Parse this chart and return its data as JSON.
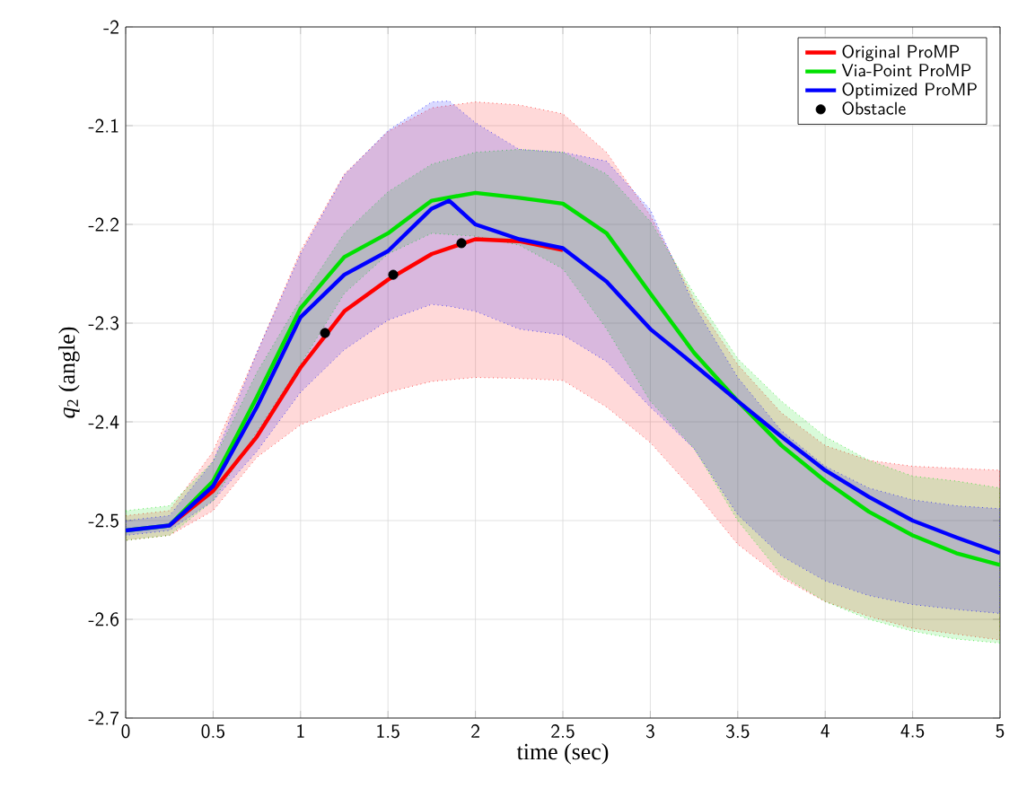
{
  "chart_data": {
    "type": "line",
    "xlabel": "time (sec)",
    "ylabel": "*q*$_{2}$ (angle)",
    "x": [
      0,
      0.25,
      0.5,
      0.75,
      1,
      1.25,
      1.5,
      1.75,
      2,
      2.25,
      2.5,
      2.75,
      3,
      3.25,
      3.5,
      3.75,
      4,
      4.25,
      4.5,
      4.75,
      5
    ],
    "xlim": [
      0,
      5
    ],
    "ylim": [
      -2.7,
      -2
    ],
    "xticks": [
      0,
      0.5,
      1,
      1.5,
      2,
      2.5,
      3,
      3.5,
      4,
      4.5,
      5
    ],
    "yticks": [
      -2.7,
      -2.6,
      -2.5,
      -2.4,
      -2.3,
      -2.2,
      -2.1,
      -2
    ],
    "grid": true,
    "legend": "top right",
    "series": [
      {
        "name": "Original ProMP",
        "color": "#ff0000",
        "values": [
          null,
          -2.505,
          -2.47,
          -2.415,
          -2.345,
          -2.288,
          -2.256,
          -2.23,
          -2.215,
          -2.217,
          -2.226,
          null,
          null,
          null,
          null,
          null,
          null,
          null,
          null,
          null,
          null
        ],
        "upper": [
          -2.495,
          -2.49,
          -2.43,
          -2.33,
          -2.227,
          -2.149,
          -2.106,
          -2.082,
          -2.076,
          -2.079,
          -2.088,
          -2.127,
          -2.191,
          -2.276,
          -2.342,
          -2.391,
          -2.424,
          -2.439,
          -2.445,
          -2.447,
          -2.449
        ],
        "lower": [
          -2.52,
          -2.515,
          -2.49,
          -2.436,
          -2.403,
          -2.385,
          -2.37,
          -2.359,
          -2.355,
          -2.356,
          -2.358,
          -2.385,
          -2.421,
          -2.47,
          -2.524,
          -2.558,
          -2.582,
          -2.597,
          -2.609,
          -2.615,
          -2.621
        ]
      },
      {
        "name": "Via-Point ProMP",
        "color": "#00e000",
        "values": [
          -2.51,
          -2.505,
          -2.46,
          -2.375,
          -2.285,
          -2.233,
          -2.209,
          -2.176,
          -2.168,
          -2.173,
          -2.179,
          -2.209,
          -2.27,
          -2.33,
          -2.379,
          -2.424,
          -2.46,
          -2.491,
          -2.515,
          -2.533,
          -2.545
        ],
        "upper": [
          -2.49,
          -2.485,
          -2.44,
          -2.35,
          -2.276,
          -2.209,
          -2.167,
          -2.139,
          -2.127,
          -2.124,
          -2.127,
          -2.149,
          -2.197,
          -2.27,
          -2.336,
          -2.379,
          -2.415,
          -2.439,
          -2.455,
          -2.46,
          -2.467
        ],
        "lower": [
          -2.52,
          -2.515,
          -2.48,
          -2.41,
          -2.342,
          -2.27,
          -2.23,
          -2.209,
          -2.212,
          -2.221,
          -2.245,
          -2.306,
          -2.379,
          -2.427,
          -2.5,
          -2.555,
          -2.582,
          -2.6,
          -2.612,
          -2.62,
          -2.624
        ]
      },
      {
        "name": "Optimized ProMP",
        "color": "#0000ff",
        "x": [
          0,
          0.25,
          0.5,
          0.75,
          1,
          1.25,
          1.5,
          1.75,
          1.85,
          2,
          2.25,
          2.5,
          2.75,
          3,
          3.25,
          3.5,
          3.75,
          4,
          4.25,
          4.5,
          4.75,
          5
        ],
        "values": [
          -2.51,
          -2.505,
          -2.465,
          -2.385,
          -2.294,
          -2.251,
          -2.227,
          -2.184,
          -2.176,
          -2.2,
          -2.215,
          -2.224,
          -2.258,
          -2.306,
          -2.342,
          -2.379,
          -2.415,
          -2.449,
          -2.476,
          -2.5,
          -2.517,
          -2.533
        ],
        "upper": [
          -2.5,
          -2.495,
          -2.44,
          -2.33,
          -2.23,
          -2.15,
          -2.105,
          -2.076,
          -2.075,
          -2.097,
          -2.124,
          -2.127,
          -2.136,
          -2.185,
          -2.282,
          -2.355,
          -2.409,
          -2.445,
          -2.467,
          -2.479,
          -2.485,
          -2.488
        ],
        "lower": [
          -2.515,
          -2.51,
          -2.48,
          -2.43,
          -2.37,
          -2.327,
          -2.297,
          -2.281,
          -2.283,
          -2.288,
          -2.306,
          -2.312,
          -2.339,
          -2.385,
          -2.427,
          -2.494,
          -2.536,
          -2.561,
          -2.576,
          -2.585,
          -2.59,
          -2.594
        ]
      },
      {
        "name": "Obstacle",
        "type": "scatter",
        "color": "#000000",
        "marker": "circle",
        "x": [
          1.14,
          1.53,
          1.92
        ],
        "values": [
          -2.31,
          -2.251,
          -2.219
        ]
      }
    ]
  }
}
